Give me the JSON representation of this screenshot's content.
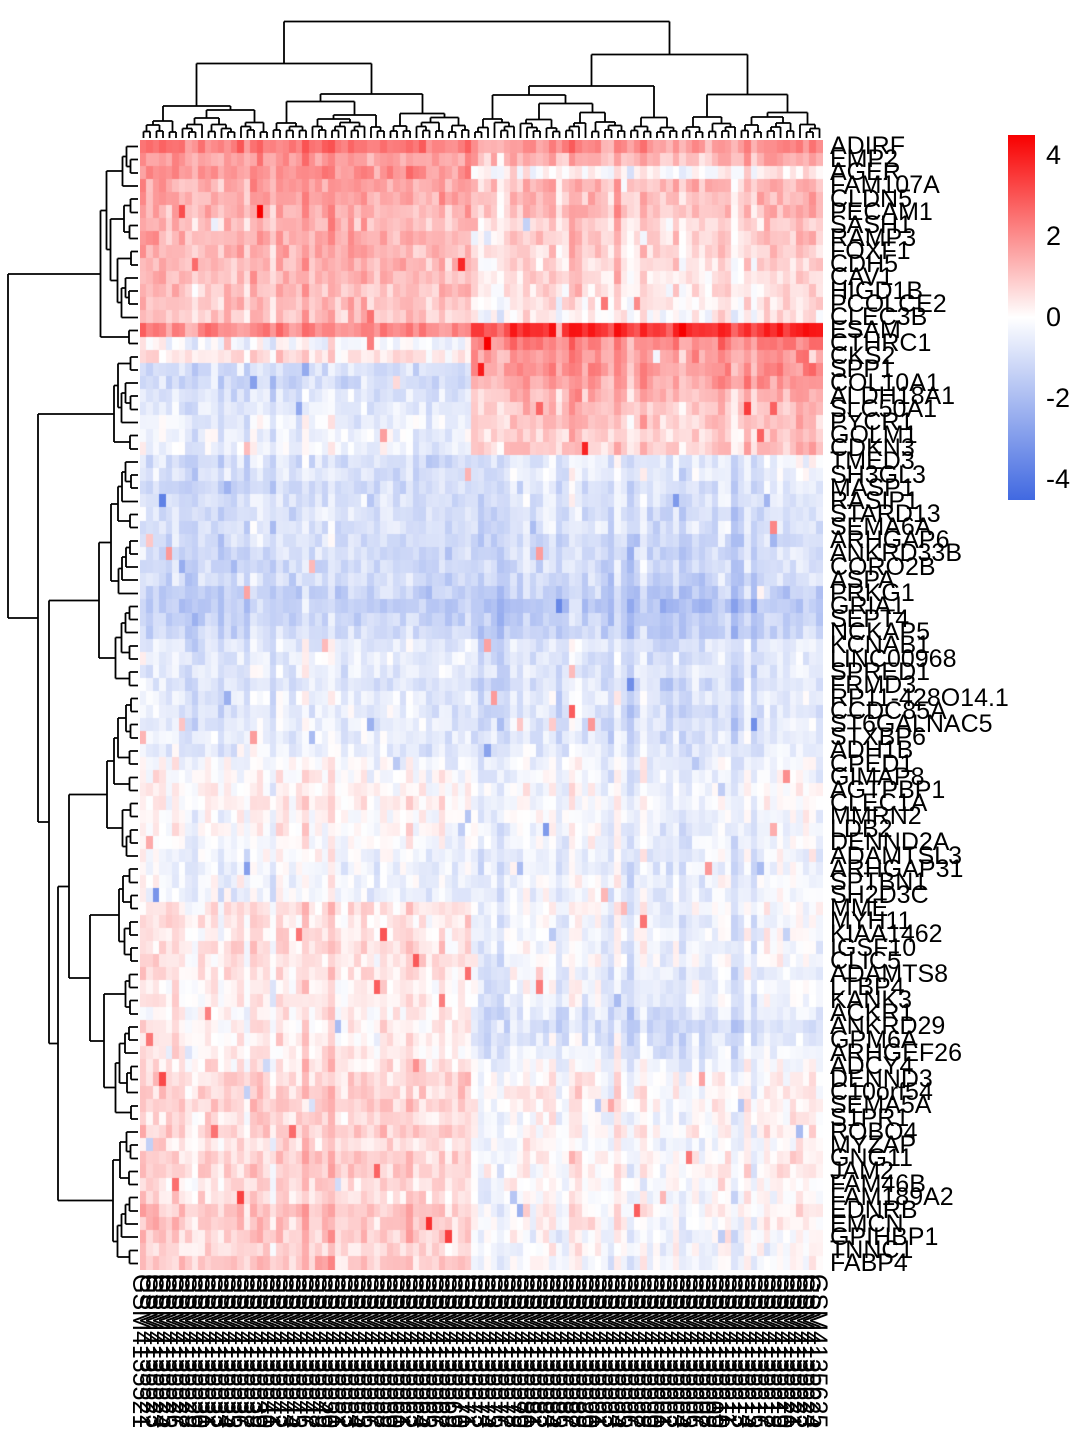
{
  "figure": {
    "title": "",
    "type": "clustered-heatmap"
  },
  "legend": {
    "position": "right",
    "gradient": {
      "top_color": "#f80000",
      "mid_color": "#ffffff",
      "bottom_color": "#4169e1"
    },
    "domain_max": 4.5,
    "domain_min": -4.5,
    "ticks": [
      {
        "label": "4",
        "value": 4
      },
      {
        "label": "2",
        "value": 2
      },
      {
        "label": "0",
        "value": 0
      },
      {
        "label": "-2",
        "value": -2
      },
      {
        "label": "-4",
        "value": -4
      }
    ]
  },
  "chart_data": {
    "type": "heatmap",
    "title": "",
    "value_scale": "row z-score",
    "n_rows": 86,
    "n_cols": 105,
    "row_labels": [
      "ADIRF",
      "EMP2",
      "AGER",
      "FAM107A",
      "CLDN5",
      "PECAM1",
      "SASH1",
      "RAMP3",
      "FOXF1",
      "CDH5",
      "CAV1",
      "HIGD1B",
      "PCOLCE2",
      "CLEC3B",
      "ESAM",
      "CTHRC1",
      "CKS2",
      "SPP1",
      "COL10A1",
      "ALDH18A1",
      "SLC50A1",
      "PYCR1",
      "GOLM1",
      "CDKN3",
      "TMED3",
      "SH3GL3",
      "MASP1",
      "RASIP1",
      "STARD13",
      "SEMA6A",
      "ARHGAP6",
      "ANKRD33B",
      "CORO2B",
      "ASPA",
      "PRKG1",
      "GRIA1",
      "SEPT4",
      "NCKAP5",
      "KCNAB1",
      "LINC00968",
      "SPRED1",
      "FRMD3",
      "RP11-428O14.1",
      "CCDC85A",
      "ST6GALNAC5",
      "STXBP6",
      "ADH1B",
      "CPED1",
      "GIMAP8",
      "AGTPBP1",
      "CLEC1A",
      "MMRN2",
      "LDB2",
      "DENND2A",
      "ADAMTSL3",
      "ARHGAP31",
      "SPTBN1",
      "SH2D3C",
      "MME",
      "MYH11",
      "KIAA1462",
      "IGSF10",
      "CLIC5",
      "ADAMTS8",
      "LTBP4",
      "KANK3",
      "ACKR1",
      "ANKRD29",
      "GPM6A",
      "ARHGEF26",
      "ADCY4",
      "DENND3",
      "C10orf54",
      "SEMA5A",
      "S1PR1",
      "ROBO4",
      "MYZAP",
      "GNG11",
      "JAM2",
      "FAM46B",
      "FAM189A2",
      "EDNRB",
      "EMCN",
      "GPIHBP1",
      "TNNC1",
      "FABP4"
    ],
    "col_labels": [
      "GSM4135521",
      "GSM4135522",
      "GSM4135523",
      "GSM4135524",
      "GSM4135525",
      "GSM4135526",
      "GSM4135527",
      "GSM4135528",
      "GSM4135529",
      "GSM4135530",
      "GSM4135531",
      "GSM4135532",
      "GSM4135533",
      "GSM4135534",
      "GSM4135535",
      "GSM4135536",
      "GSM4135537",
      "GSM4135538",
      "GSM4135539",
      "GSM4135540",
      "GSM4135541",
      "GSM4135542",
      "GSM4135543",
      "GSM4135544",
      "GSM4135545",
      "GSM4135546",
      "GSM4135547",
      "GSM4135548",
      "GSM4135549",
      "GSM4135550",
      "GSM4135551",
      "GSM4135552",
      "GSM4135553",
      "GSM4135554",
      "GSM4135555",
      "GSM4135556",
      "GSM4135557",
      "GSM4135558",
      "GSM4135559",
      "GSM4135560",
      "GSM4135561",
      "GSM4135562",
      "GSM4135563",
      "GSM4135564",
      "GSM4135565",
      "GSM4135566",
      "GSM4135567",
      "GSM4135568",
      "GSM4135569",
      "GSM4135570",
      "GSM4135571",
      "GSM4135572",
      "GSM4135573",
      "GSM4135574",
      "GSM4135575",
      "GSM4135576",
      "GSM4135577",
      "GSM4135578",
      "GSM4135579",
      "GSM4135580",
      "GSM4135581",
      "GSM4135582",
      "GSM4135583",
      "GSM4135584",
      "GSM4135585",
      "GSM4135586",
      "GSM4135587",
      "GSM4135588",
      "GSM4135589",
      "GSM4135590",
      "GSM4135591",
      "GSM4135592",
      "GSM4135593",
      "GSM4135594",
      "GSM4135595",
      "GSM4135596",
      "GSM4135597",
      "GSM4135598",
      "GSM4135599",
      "GSM4135600",
      "GSM4135601",
      "GSM4135602",
      "GSM4135603",
      "GSM4135604",
      "GSM4135605",
      "GSM4135606",
      "GSM4135607",
      "GSM4135608",
      "GSM4135609",
      "GSM4135610",
      "GSM4135611",
      "GSM4135612",
      "GSM4135613",
      "GSM4135614",
      "GSM4135615",
      "GSM4135616",
      "GSM4135617",
      "GSM4135618",
      "GSM4135619",
      "GSM4135620",
      "GSM4135621",
      "GSM4135622",
      "GSM4135623",
      "GSM4135624",
      "GSM4135625"
    ],
    "col_clusters": {
      "left": {
        "start": 0,
        "end": 50
      },
      "right": {
        "start": 51,
        "end": 104
      }
    },
    "row_means": {
      "left": [
        2.3,
        1.8,
        1.9,
        1.6,
        1.5,
        1.4,
        1.3,
        1.5,
        1.3,
        1.3,
        1.2,
        1.2,
        1.1,
        1.1,
        2.1,
        -0.2,
        0.5,
        -0.9,
        -1.1,
        -0.9,
        -0.5,
        -0.4,
        -0.3,
        -0.4,
        -0.9,
        -0.9,
        -1.0,
        -1.0,
        -0.9,
        -1.0,
        -0.9,
        -1.1,
        -1.2,
        -1.1,
        -1.2,
        -1.4,
        -1.2,
        -1.0,
        -0.7,
        -0.6,
        -0.5,
        -0.6,
        -0.5,
        -0.6,
        -0.5,
        -0.5,
        -0.4,
        -0.2,
        0.1,
        0.15,
        0.2,
        0.1,
        0.2,
        -0.1,
        -0.3,
        -0.3,
        -0.2,
        -0.3,
        0.5,
        0.55,
        0.4,
        0.5,
        0.4,
        0.5,
        0.3,
        0.4,
        0.3,
        0.25,
        0.25,
        0.35,
        0.45,
        0.7,
        0.75,
        0.9,
        0.7,
        0.8,
        0.6,
        0.85,
        0.7,
        0.6,
        0.7,
        1.05,
        1.0,
        0.85,
        0.7,
        0.9
      ],
      "right": [
        1.7,
        1.3,
        0.15,
        1.1,
        1.0,
        1.1,
        0.7,
        0.8,
        0.7,
        0.6,
        0.6,
        0.55,
        0.45,
        0.2,
        3.6,
        2.1,
        1.7,
        1.8,
        1.5,
        1.2,
        1.1,
        0.95,
        0.9,
        0.8,
        -0.5,
        -0.7,
        -0.8,
        -0.9,
        -1.0,
        -1.0,
        -1.1,
        -1.2,
        -1.2,
        -1.3,
        -1.5,
        -1.7,
        -1.5,
        -1.3,
        -1.0,
        -0.9,
        -0.8,
        -0.9,
        -0.8,
        -1.0,
        -0.8,
        -0.8,
        -0.7,
        -0.5,
        -0.3,
        -0.25,
        -0.3,
        -0.3,
        -0.35,
        -0.4,
        -0.5,
        -0.5,
        -0.4,
        -0.4,
        -0.2,
        -0.3,
        -0.3,
        -0.4,
        -0.4,
        -0.5,
        -0.4,
        -0.5,
        -0.8,
        -1.0,
        -0.9,
        -0.5,
        -0.3,
        0.0,
        0.05,
        0.1,
        0.0,
        0.1,
        0.0,
        0.1,
        0.0,
        -0.05,
        -0.1,
        0.1,
        0.05,
        -0.25,
        -0.15,
        -0.3
      ]
    },
    "legend_ticks": [
      4,
      2,
      0,
      -2,
      -4
    ],
    "colormap": {
      "low": "#4169e1",
      "mid": "#ffffff",
      "high": "#f80000",
      "min": -4.5,
      "max": 4.5
    },
    "render_hints": {
      "seed": 42,
      "cell_noise_sd": 0.5,
      "column_bias_sd": 0.28,
      "outlier_prob": 0.015,
      "col_dendro_forced_splits": {
        "0-105": 51,
        "0-51": 20,
        "51-105": 83
      },
      "row_dendro_forced_splits": {
        "0-86": 16,
        "0-16": 14,
        "16-86": 24
      }
    }
  }
}
